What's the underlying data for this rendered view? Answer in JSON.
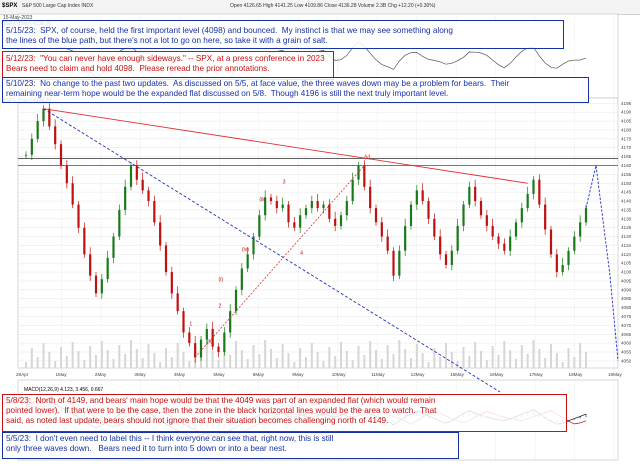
{
  "header": {
    "symbol": "$SPX",
    "name": "S&P 500 Large Cap Index  INDX",
    "date": "15-May-2023",
    "ohlc": "Open 4126.65   High 4141.25   Low 4109.86   Close 4136.28   Volume 2.3B   Chg +12.20 (+0.30%)",
    "legend_spx": "$SPX (Daily) 4136.28",
    "legend_rsi": "RSI(14) 56.79",
    "legend_macd": "MACD(12,26,9) 4.123, 3.456, 0.667"
  },
  "annotations": {
    "a515": "5/15/23:  SPX, of course, held the first important level (4098) and bounced.  My instinct is that we may see something along\nthe lines of the blue path, but there's not a lot to go on here, so take it with a grain of salt.",
    "a512": "5/12/23:  \"You can never have enough sideways.\" -- SPX, at a press conference in 2023\nBears need to claim and hold 4098.  Please reread the prior annotations.",
    "a510": "5/10/23:  No change to the past two updates.  As discussed on 5/5, at face value, the three waves down may be a problem for bears.  Their\nremaining near-term hope would be the expanded flat discussed on 5/8.  Though 4196 is still the next truly important level.",
    "a58": "5/8/23:  North of 4149, and bears' main hope would be that the 4049 was part of an expanded flat (which would remain\npointed lower).  If that were to be the case, then the zone in the black horizontal lines would be the area to watch.  That\nsaid, as noted last update, bears should not ignore that their situation becomes challenging north of 4149.",
    "a55": "5/5/23:  I don't even need to label this -- I think everyone can see that, right now, this is still\nonly three waves down.   Bears need it to turn into 5 down or into a bear nest."
  },
  "wave_labels": {
    "w1": "1",
    "w2": "2",
    "w3": "3",
    "w4": "4",
    "wi": "(i)",
    "wii": "(ii)",
    "wiii": "(iii)",
    "wiv": "(iv)",
    "wv": "(v)"
  },
  "chart_data": {
    "type": "candlestick",
    "title": "",
    "y_ticks": [
      "4195",
      "4190",
      "4185",
      "4180",
      "4175",
      "4170",
      "4165",
      "4160",
      "4155",
      "4150",
      "4145",
      "4140",
      "4135",
      "4130",
      "4125",
      "4120",
      "4115",
      "4110",
      "4105",
      "4100",
      "4095",
      "4090",
      "4085",
      "4080",
      "4075",
      "4070",
      "4065",
      "4060",
      "4055",
      "4050"
    ],
    "x_ticks": [
      "28Apr",
      "1May",
      "2May",
      "3May",
      "4May",
      "5May",
      "8May",
      "9May",
      "10May",
      "11May",
      "12May",
      "15May",
      "16May",
      "17May",
      "18May",
      "19May"
    ],
    "price_levels": [
      4196,
      4149,
      4098,
      4049
    ],
    "price_path": [
      4166,
      4175,
      4185,
      4192,
      4182,
      4172,
      4160,
      4150,
      4138,
      4125,
      4110,
      4098,
      4088,
      4096,
      4108,
      4120,
      4135,
      4148,
      4160,
      4152,
      4146,
      4140,
      4128,
      4115,
      4100,
      4088,
      4078,
      4066,
      4060,
      4052,
      4062,
      4068,
      4058,
      4055,
      4066,
      4078,
      4090,
      4102,
      4110,
      4120,
      4132,
      4142,
      4140,
      4136,
      4138,
      4128,
      4125,
      4132,
      4136,
      4140,
      4136,
      4138,
      4130,
      4126,
      4132,
      4140,
      4152,
      4160,
      4148,
      4136,
      4128,
      4120,
      4112,
      4098,
      4112,
      4126,
      4138,
      4146,
      4140,
      4130,
      4120,
      4110,
      4104,
      4112,
      4126,
      4138,
      4148,
      4140,
      4132,
      4126,
      4120,
      4116,
      4112,
      4120,
      4128,
      4136,
      4144,
      4152,
      4138,
      4124,
      4110,
      4100,
      4104,
      4112,
      4120,
      4128,
      4136
    ],
    "projection_blue": [
      4136,
      4160,
      4098,
      4050
    ]
  }
}
